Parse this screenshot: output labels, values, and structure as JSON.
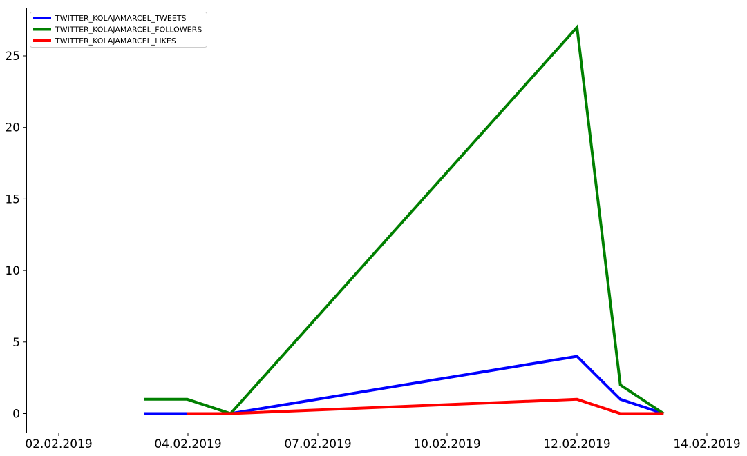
{
  "chart_data": {
    "type": "line",
    "title": "",
    "xlabel": "",
    "ylabel": "",
    "x_ticks": [
      "02.02.2019",
      "04.02.2019",
      "07.02.2019",
      "10.02.2019",
      "12.02.2019",
      "14.02.2019"
    ],
    "y_ticks": [
      "0",
      "5",
      "10",
      "15",
      "20",
      "25"
    ],
    "ylim": [
      -1.4,
      28.5
    ],
    "legend_position": "top-left",
    "grid": false,
    "series": [
      {
        "name": "TWITTER_KOLAJAMARCEL_TWEETS",
        "color": "#0000ff",
        "points": [
          {
            "x": "03.02.2019 16:00",
            "y": 0
          },
          {
            "x": "04.02.2019 12:00",
            "y": 0
          },
          {
            "x": "05.02.2019 08:00",
            "y": 0
          },
          {
            "x": "12.02.2019 00:00",
            "y": 4
          },
          {
            "x": "12.02.2019 20:00",
            "y": 1
          },
          {
            "x": "13.02.2019 16:00",
            "y": 0
          }
        ]
      },
      {
        "name": "TWITTER_KOLAJAMARCEL_FOLLOWERS",
        "color": "#008000",
        "points": [
          {
            "x": "03.02.2019 16:00",
            "y": 1
          },
          {
            "x": "04.02.2019 12:00",
            "y": 1
          },
          {
            "x": "05.02.2019 08:00",
            "y": 0
          },
          {
            "x": "12.02.2019 00:00",
            "y": 27
          },
          {
            "x": "12.02.2019 20:00",
            "y": 2
          },
          {
            "x": "13.02.2019 16:00",
            "y": 0
          }
        ]
      },
      {
        "name": "TWITTER_KOLAJAMARCEL_LIKES",
        "color": "#ff0000",
        "points": [
          {
            "x": "04.02.2019 12:00",
            "y": 0
          },
          {
            "x": "05.02.2019 08:00",
            "y": 0
          },
          {
            "x": "12.02.2019 00:00",
            "y": 1
          },
          {
            "x": "12.02.2019 20:00",
            "y": 0
          },
          {
            "x": "13.02.2019 16:00",
            "y": 0
          }
        ]
      }
    ]
  }
}
